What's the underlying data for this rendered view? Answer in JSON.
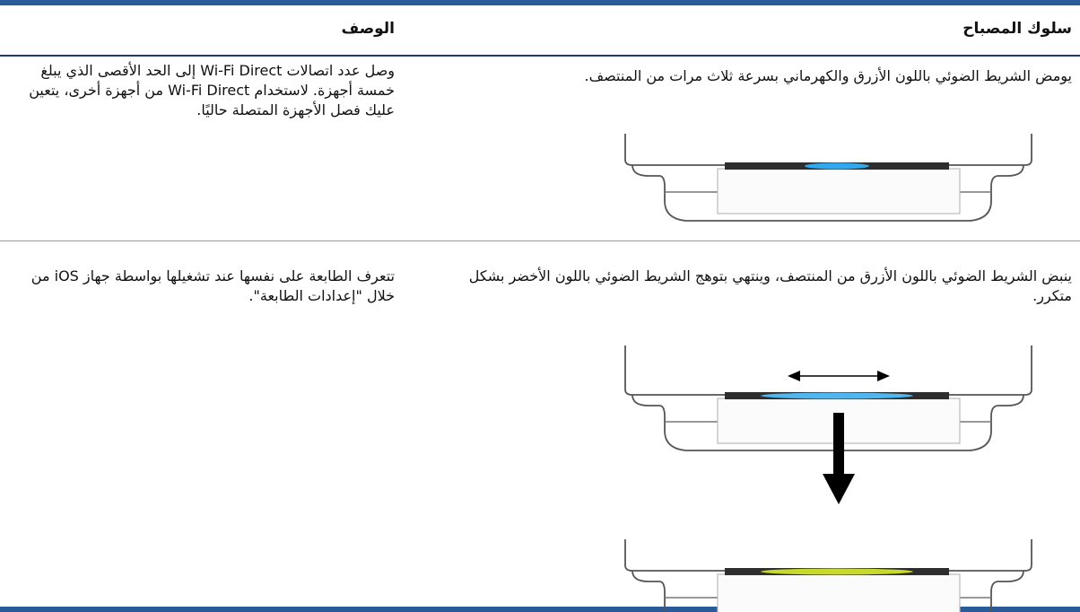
{
  "table": {
    "header": [
      "سلوك المصباح",
      "الوصف"
    ],
    "rows": [
      [
        "يومض الشريط الضوئي باللون الأزرق والكهرماني بسرعة ثلاث مرات من المنتصف.",
        "وصل عدد اتصالات Wi-Fi Direct إلى الحد الأقصى الذي يبلغ خمسة أجهزة. لاستخدام Wi-Fi Direct من أجهزة أخرى، يتعين عليك فصل الأجهزة المتصلة حاليًا."
      ],
      [
        "ينبض الشريط الضوئي باللون الأزرق من المنتصف، وينتهي بتوهج الشريط الضوئي باللون الأخضر بشكل متكرر.",
        "تتعرف الطابعة على نفسها عند تشغيلها بواسطة جهاز iOS من خلال \"إعدادات الطابعة\"."
      ]
    ]
  }
}
